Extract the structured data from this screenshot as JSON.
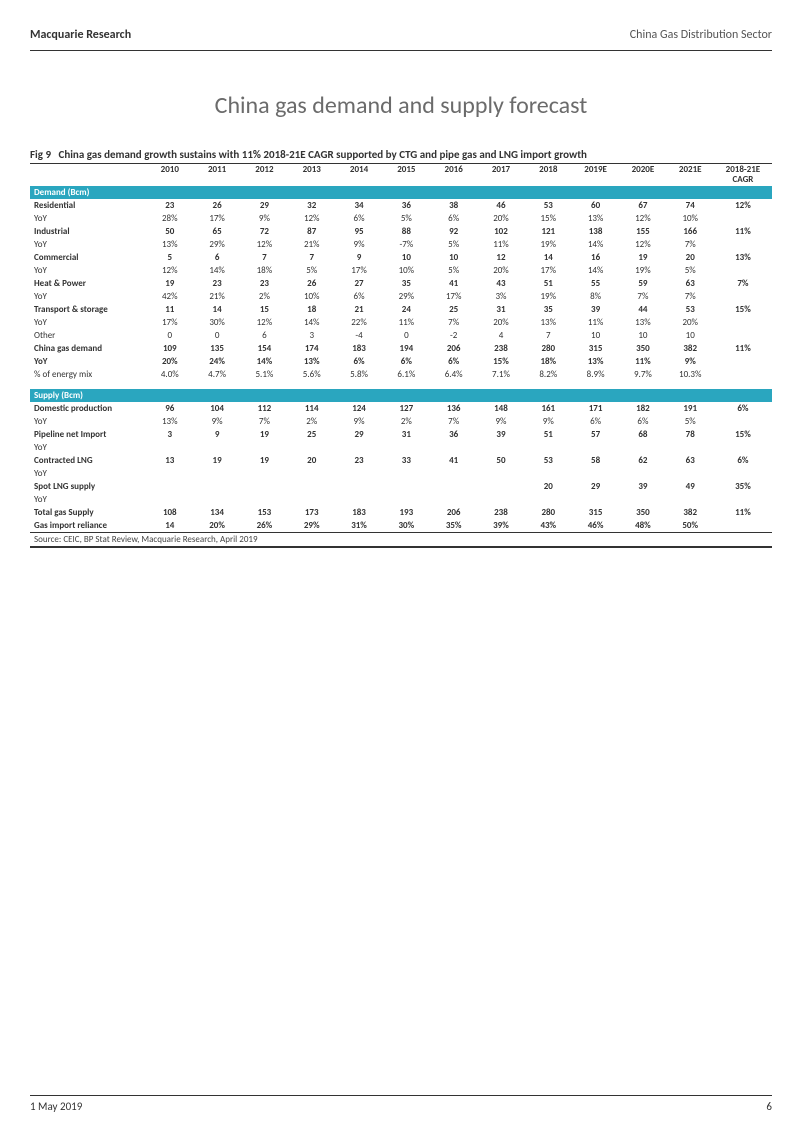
{
  "header": {
    "left": "Macquarie Research",
    "right": "China Gas Distribution Sector"
  },
  "title": "China gas demand and supply forecast",
  "figure": {
    "label": "Fig 9",
    "caption": "China gas demand growth sustains with 11% 2018-21E CAGR supported by CTG and pipe gas and LNG import growth",
    "years": [
      "2010",
      "2011",
      "2012",
      "2013",
      "2014",
      "2015",
      "2016",
      "2017",
      "2018",
      "2019E",
      "2020E",
      "2021E"
    ],
    "cagr_header_l1": "2018-21E",
    "cagr_header_l2": "CAGR",
    "source": "Source: CEIC, BP Stat Review, Macquarie Research, April 2019",
    "section_demand": "Demand (Bcm)",
    "section_supply": "Supply (Bcm)",
    "colors": {
      "section_bg": "#2aa6bf",
      "section_fg": "#ffffff",
      "rule": "#333333"
    },
    "demand_rows": [
      {
        "label": "Residential",
        "bold": true,
        "vals": [
          "23",
          "26",
          "29",
          "32",
          "34",
          "36",
          "38",
          "46",
          "53",
          "60",
          "67",
          "74"
        ],
        "cagr": "12%"
      },
      {
        "label": "YoY",
        "bold": false,
        "vals": [
          "28%",
          "17%",
          "9%",
          "12%",
          "6%",
          "5%",
          "6%",
          "20%",
          "15%",
          "13%",
          "12%",
          "10%"
        ],
        "cagr": ""
      },
      {
        "label": "Industrial",
        "bold": true,
        "vals": [
          "50",
          "65",
          "72",
          "87",
          "95",
          "88",
          "92",
          "102",
          "121",
          "138",
          "155",
          "166"
        ],
        "cagr": "11%"
      },
      {
        "label": "YoY",
        "bold": false,
        "vals": [
          "13%",
          "29%",
          "12%",
          "21%",
          "9%",
          "-7%",
          "5%",
          "11%",
          "19%",
          "14%",
          "12%",
          "7%"
        ],
        "cagr": ""
      },
      {
        "label": "Commercial",
        "bold": true,
        "vals": [
          "5",
          "6",
          "7",
          "7",
          "9",
          "10",
          "10",
          "12",
          "14",
          "16",
          "19",
          "20"
        ],
        "cagr": "13%"
      },
      {
        "label": "YoY",
        "bold": false,
        "vals": [
          "12%",
          "14%",
          "18%",
          "5%",
          "17%",
          "10%",
          "5%",
          "20%",
          "17%",
          "14%",
          "19%",
          "5%"
        ],
        "cagr": ""
      },
      {
        "label": "Heat & Power",
        "bold": true,
        "vals": [
          "19",
          "23",
          "23",
          "26",
          "27",
          "35",
          "41",
          "43",
          "51",
          "55",
          "59",
          "63"
        ],
        "cagr": "7%"
      },
      {
        "label": "YoY",
        "bold": false,
        "vals": [
          "42%",
          "21%",
          "2%",
          "10%",
          "6%",
          "29%",
          "17%",
          "3%",
          "19%",
          "8%",
          "7%",
          "7%"
        ],
        "cagr": ""
      },
      {
        "label": "Transport & storage",
        "bold": true,
        "vals": [
          "11",
          "14",
          "15",
          "18",
          "21",
          "24",
          "25",
          "31",
          "35",
          "39",
          "44",
          "53"
        ],
        "cagr": "15%"
      },
      {
        "label": "YoY",
        "bold": false,
        "vals": [
          "17%",
          "30%",
          "12%",
          "14%",
          "22%",
          "11%",
          "7%",
          "20%",
          "13%",
          "11%",
          "13%",
          "20%"
        ],
        "cagr": ""
      },
      {
        "label": "Other",
        "bold": false,
        "vals": [
          "0",
          "0",
          "6",
          "3",
          "-4",
          "0",
          "-2",
          "4",
          "7",
          "10",
          "10",
          "10"
        ],
        "cagr": ""
      },
      {
        "label": "China gas demand",
        "bold": true,
        "vals": [
          "109",
          "135",
          "154",
          "174",
          "183",
          "194",
          "206",
          "238",
          "280",
          "315",
          "350",
          "382"
        ],
        "cagr": "11%"
      },
      {
        "label": "YoY",
        "bold": true,
        "vals": [
          "20%",
          "24%",
          "14%",
          "13%",
          "6%",
          "6%",
          "6%",
          "15%",
          "18%",
          "13%",
          "11%",
          "9%"
        ],
        "cagr": ""
      },
      {
        "label": "% of energy mix",
        "bold": false,
        "vals": [
          "4.0%",
          "4.7%",
          "5.1%",
          "5.6%",
          "5.8%",
          "6.1%",
          "6.4%",
          "7.1%",
          "8.2%",
          "8.9%",
          "9.7%",
          "10.3%"
        ],
        "cagr": ""
      }
    ],
    "supply_rows": [
      {
        "label": "Domestic production",
        "bold": true,
        "vals": [
          "96",
          "104",
          "112",
          "114",
          "124",
          "127",
          "136",
          "148",
          "161",
          "171",
          "182",
          "191"
        ],
        "cagr": "6%"
      },
      {
        "label": "YoY",
        "bold": false,
        "vals": [
          "13%",
          "9%",
          "7%",
          "2%",
          "9%",
          "2%",
          "7%",
          "9%",
          "9%",
          "6%",
          "6%",
          "5%"
        ],
        "cagr": ""
      },
      {
        "label": "Pipeline net Import",
        "bold": true,
        "vals": [
          "3",
          "9",
          "19",
          "25",
          "29",
          "31",
          "36",
          "39",
          "51",
          "57",
          "68",
          "78"
        ],
        "cagr": "15%"
      },
      {
        "label": "YoY",
        "bold": false,
        "vals": [
          "",
          "",
          "",
          "",
          "",
          "",
          "",
          "",
          "",
          "",
          "",
          ""
        ],
        "cagr": ""
      },
      {
        "label": "Contracted LNG",
        "bold": true,
        "vals": [
          "13",
          "19",
          "19",
          "20",
          "23",
          "33",
          "41",
          "50",
          "53",
          "58",
          "62",
          "63"
        ],
        "cagr": "6%"
      },
      {
        "label": "YoY",
        "bold": false,
        "vals": [
          "",
          "",
          "",
          "",
          "",
          "",
          "",
          "",
          "",
          "",
          "",
          ""
        ],
        "cagr": ""
      },
      {
        "label": "Spot LNG supply",
        "bold": true,
        "vals": [
          "",
          "",
          "",
          "",
          "",
          "",
          "",
          "",
          "20",
          "29",
          "39",
          "49"
        ],
        "cagr": "35%"
      },
      {
        "label": "YoY",
        "bold": false,
        "vals": [
          "",
          "",
          "",
          "",
          "",
          "",
          "",
          "",
          "",
          "",
          "",
          ""
        ],
        "cagr": ""
      },
      {
        "label": "Total gas Supply",
        "bold": true,
        "vals": [
          "108",
          "134",
          "153",
          "173",
          "183",
          "193",
          "206",
          "238",
          "280",
          "315",
          "350",
          "382"
        ],
        "cagr": "11%"
      },
      {
        "label": "Gas import reliance",
        "bold": true,
        "vals": [
          "14",
          "20%",
          "26%",
          "29%",
          "31%",
          "30%",
          "35%",
          "39%",
          "43%",
          "46%",
          "48%",
          "50%"
        ],
        "cagr": ""
      }
    ]
  },
  "footer": {
    "date": "1 May 2019",
    "page": "6"
  }
}
